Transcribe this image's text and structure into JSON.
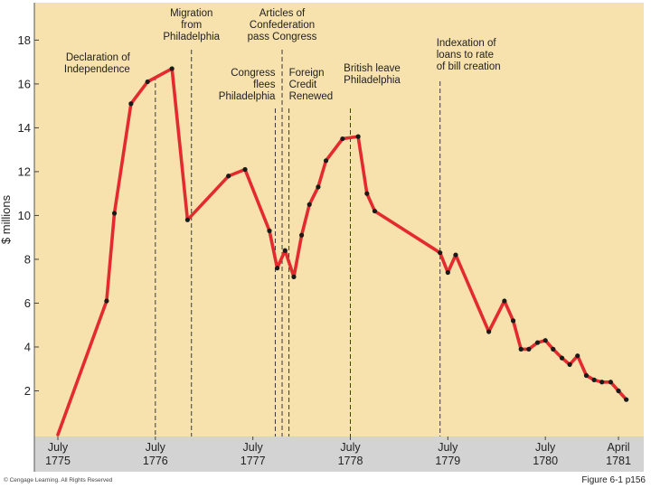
{
  "chart_data": {
    "type": "line",
    "title": "",
    "ylabel": "$ millions",
    "xlabel": "",
    "ylim": [
      0,
      19.5
    ],
    "yticks": [
      2,
      4,
      6,
      8,
      10,
      12,
      14,
      16,
      18
    ],
    "xlim": [
      1775.5,
      1781.5
    ],
    "xticks": [
      {
        "x": 1775.5,
        "label": [
          "July",
          "1775"
        ]
      },
      {
        "x": 1776.5,
        "label": [
          "July",
          "1776"
        ]
      },
      {
        "x": 1777.5,
        "label": [
          "July",
          "1777"
        ]
      },
      {
        "x": 1778.5,
        "label": [
          "July",
          "1778"
        ]
      },
      {
        "x": 1779.5,
        "label": [
          "July",
          "1779"
        ]
      },
      {
        "x": 1780.5,
        "label": [
          "July",
          "1780"
        ]
      },
      {
        "x": 1781.25,
        "label": [
          "April",
          "1781"
        ]
      }
    ],
    "series": [
      {
        "name": "value",
        "x": [
          1775.5,
          1776.0,
          1776.08,
          1776.25,
          1776.42,
          1776.67,
          1776.83,
          1777.25,
          1777.42,
          1777.67,
          1777.75,
          1777.83,
          1777.92,
          1778.0,
          1778.08,
          1778.17,
          1778.25,
          1778.42,
          1778.58,
          1778.67,
          1778.75,
          1779.42,
          1779.5,
          1779.58,
          1779.92,
          1780.08,
          1780.17,
          1780.25,
          1780.33,
          1780.42,
          1780.5,
          1780.58,
          1780.67,
          1780.75,
          1780.83,
          1780.92,
          1781.0,
          1781.08,
          1781.17,
          1781.25,
          1781.33
        ],
        "y": [
          0.0,
          6.1,
          10.1,
          15.1,
          16.1,
          16.7,
          9.8,
          11.8,
          12.1,
          9.3,
          7.6,
          8.4,
          7.2,
          9.1,
          10.5,
          11.3,
          12.5,
          13.5,
          13.6,
          11.0,
          10.2,
          8.3,
          7.4,
          8.2,
          4.7,
          6.1,
          5.2,
          3.9,
          3.9,
          4.2,
          4.3,
          3.9,
          3.5,
          3.2,
          3.6,
          2.7,
          2.5,
          2.4,
          2.4,
          2.0,
          1.6
        ]
      }
    ],
    "annotations": [
      {
        "x": 1776.5,
        "label": [
          "Declaration of",
          "Independence"
        ]
      },
      {
        "x": 1776.87,
        "label": [
          "Migration",
          "from",
          "Philadelphia"
        ]
      },
      {
        "x": 1777.73,
        "label": [
          "Congress",
          "flees",
          "Philadelphia"
        ]
      },
      {
        "x": 1777.8,
        "label": [
          "Articles of",
          "Confederation",
          "pass Congress"
        ]
      },
      {
        "x": 1777.87,
        "label": [
          "Foreign",
          "Credit",
          "Renewed"
        ]
      },
      {
        "x": 1778.5,
        "label": [
          "British leave",
          "Philadelphia"
        ]
      },
      {
        "x": 1779.42,
        "label": [
          "Indexation of",
          "loans to rate",
          "of bill creation"
        ]
      }
    ],
    "colors": {
      "background": "#f7e1ad",
      "axis_band": "#d3d3d3",
      "line": "#e32b2f",
      "marker": "#1a1a1a",
      "grid": "#8a8a8a"
    }
  },
  "footer": {
    "copyright": "© Cengage Learning. All Rights Reserved",
    "figure_ref": "Figure 6-1 p156"
  }
}
